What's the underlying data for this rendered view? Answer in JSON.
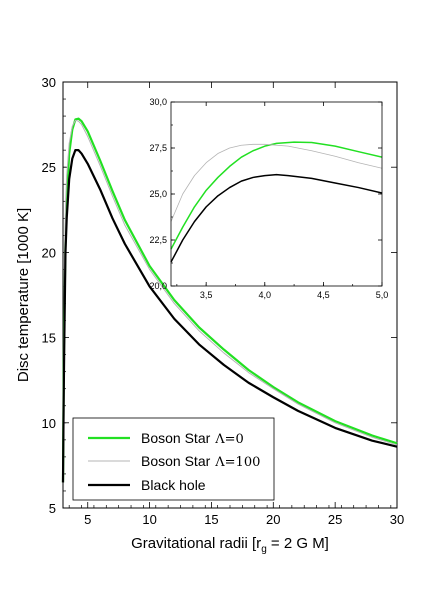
{
  "chart_data": [
    {
      "type": "line",
      "title": "",
      "xlabel": "Gravitational radii [r",
      "xlabel_sub": "g",
      "xlabel_tail": " = 2 G M]",
      "ylabel": "Disc temperature [1000 K]",
      "xlim": [
        3,
        30
      ],
      "ylim": [
        5,
        30
      ],
      "xticks": [
        "5",
        "10",
        "15",
        "20",
        "25",
        "30"
      ],
      "yticks": [
        "5",
        "10",
        "15",
        "20",
        "25",
        "30"
      ],
      "legend_position": "bottom-left",
      "series": [
        {
          "name": "Boson Star",
          "name_symbol": "Λ=0",
          "color": "#22e022",
          "points": [
            [
              3.0,
              6.5
            ],
            [
              3.05,
              12.0
            ],
            [
              3.1,
              16.0
            ],
            [
              3.2,
              20.5
            ],
            [
              3.3,
              23.0
            ],
            [
              3.5,
              25.8
            ],
            [
              3.75,
              27.2
            ],
            [
              4.0,
              27.8
            ],
            [
              4.25,
              27.85
            ],
            [
              4.5,
              27.7
            ],
            [
              5,
              27.1
            ],
            [
              6,
              25.4
            ],
            [
              7,
              23.6
            ],
            [
              8,
              21.9
            ],
            [
              10,
              19.2
            ],
            [
              12,
              17.2
            ],
            [
              14,
              15.6
            ],
            [
              16,
              14.3
            ],
            [
              18,
              13.1
            ],
            [
              20,
              12.1
            ],
            [
              22,
              11.2
            ],
            [
              25,
              10.1
            ],
            [
              28,
              9.25
            ],
            [
              30,
              8.8
            ]
          ]
        },
        {
          "name": "Boson Star",
          "name_symbol": "Λ=100",
          "color": "#b4b4b4",
          "points": [
            [
              3.0,
              6.5
            ],
            [
              3.05,
              14.0
            ],
            [
              3.1,
              18.5
            ],
            [
              3.2,
              22.7
            ],
            [
              3.3,
              24.5
            ],
            [
              3.5,
              26.4
            ],
            [
              3.75,
              27.4
            ],
            [
              4.0,
              27.75
            ],
            [
              4.25,
              27.7
            ],
            [
              4.5,
              27.5
            ],
            [
              5,
              26.8
            ],
            [
              6,
              25.1
            ],
            [
              7,
              23.3
            ],
            [
              8,
              21.6
            ],
            [
              10,
              19.0
            ],
            [
              12,
              17.0
            ],
            [
              14,
              15.4
            ],
            [
              16,
              14.1
            ],
            [
              18,
              12.95
            ],
            [
              20,
              12.0
            ],
            [
              22,
              11.1
            ],
            [
              25,
              10.0
            ],
            [
              28,
              9.15
            ],
            [
              30,
              8.7
            ]
          ]
        },
        {
          "name": "Black hole",
          "name_symbol": "",
          "color": "#000000",
          "points": [
            [
              3.0,
              6.5
            ],
            [
              3.05,
              11.0
            ],
            [
              3.1,
              14.5
            ],
            [
              3.2,
              20.0
            ],
            [
              3.3,
              22.0
            ],
            [
              3.5,
              24.3
            ],
            [
              3.75,
              25.5
            ],
            [
              4.0,
              26.0
            ],
            [
              4.25,
              26.0
            ],
            [
              4.5,
              25.8
            ],
            [
              5,
              25.2
            ],
            [
              6,
              23.7
            ],
            [
              7,
              22.0
            ],
            [
              8,
              20.5
            ],
            [
              10,
              18.0
            ],
            [
              12,
              16.1
            ],
            [
              14,
              14.6
            ],
            [
              16,
              13.4
            ],
            [
              18,
              12.35
            ],
            [
              20,
              11.5
            ],
            [
              22,
              10.7
            ],
            [
              25,
              9.7
            ],
            [
              28,
              8.95
            ],
            [
              30,
              8.6
            ]
          ]
        }
      ]
    },
    {
      "type": "line",
      "title": "",
      "xlim": [
        3.2,
        5.0
      ],
      "ylim": [
        20.0,
        30.0
      ],
      "xticks": [
        "3,5",
        "4,0",
        "4,5",
        "5,0"
      ],
      "yticks": [
        "20,0",
        "22,5",
        "25,0",
        "27,5",
        "30,0"
      ],
      "series": [
        {
          "color": "#22e022",
          "points": [
            [
              3.2,
              22.0
            ],
            [
              3.3,
              23.2
            ],
            [
              3.4,
              24.3
            ],
            [
              3.5,
              25.2
            ],
            [
              3.6,
              25.9
            ],
            [
              3.7,
              26.5
            ],
            [
              3.8,
              27.0
            ],
            [
              3.9,
              27.35
            ],
            [
              4.0,
              27.6
            ],
            [
              4.1,
              27.75
            ],
            [
              4.25,
              27.82
            ],
            [
              4.4,
              27.8
            ],
            [
              4.6,
              27.6
            ],
            [
              4.8,
              27.3
            ],
            [
              5.0,
              27.0
            ]
          ]
        },
        {
          "color": "#b4b4b4",
          "points": [
            [
              3.2,
              23.5
            ],
            [
              3.3,
              25.0
            ],
            [
              3.4,
              26.0
            ],
            [
              3.5,
              26.7
            ],
            [
              3.6,
              27.2
            ],
            [
              3.7,
              27.5
            ],
            [
              3.8,
              27.65
            ],
            [
              3.9,
              27.7
            ],
            [
              4.0,
              27.7
            ],
            [
              4.2,
              27.6
            ],
            [
              4.4,
              27.35
            ],
            [
              4.6,
              27.05
            ],
            [
              4.8,
              26.7
            ],
            [
              5.0,
              26.4
            ]
          ]
        },
        {
          "color": "#000000",
          "points": [
            [
              3.2,
              21.3
            ],
            [
              3.3,
              22.5
            ],
            [
              3.4,
              23.5
            ],
            [
              3.5,
              24.3
            ],
            [
              3.6,
              24.9
            ],
            [
              3.7,
              25.35
            ],
            [
              3.8,
              25.7
            ],
            [
              3.9,
              25.9
            ],
            [
              4.0,
              26.0
            ],
            [
              4.1,
              26.05
            ],
            [
              4.2,
              26.0
            ],
            [
              4.4,
              25.85
            ],
            [
              4.6,
              25.6
            ],
            [
              4.8,
              25.35
            ],
            [
              5.0,
              25.05
            ]
          ]
        }
      ]
    }
  ]
}
